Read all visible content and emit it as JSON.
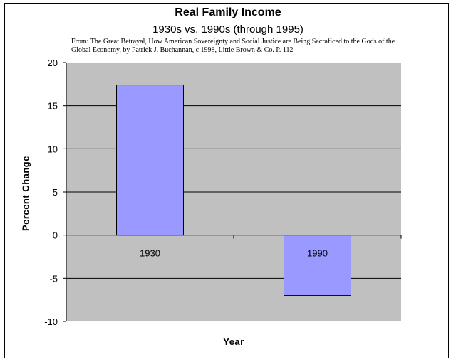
{
  "chart_data": {
    "type": "bar",
    "title": "Real Family Income",
    "subtitle": "1930s vs. 1990s (through 1995)",
    "source": "From: The Great Betrayal, How American Sovereignty and Social Justice are Being Sacraficed to the Gods of the Global Economy, by Patrick J. Buchannan, c 1998, Little Brown & Co. P. 112",
    "categories": [
      "1930",
      "1990"
    ],
    "values": [
      17.4,
      -7.0
    ],
    "xlabel": "Year",
    "ylabel": "Percent Change",
    "ylim": [
      -10,
      20
    ],
    "yticks": [
      "20",
      "15",
      "10",
      "5",
      "0",
      "-5",
      "-10"
    ],
    "grid": true,
    "legend": "none"
  },
  "colors": {
    "plot_background": "#c0c0c0",
    "bar_fill": "#9999ff",
    "bar_stroke": "#000000",
    "gridline": "#000000"
  }
}
